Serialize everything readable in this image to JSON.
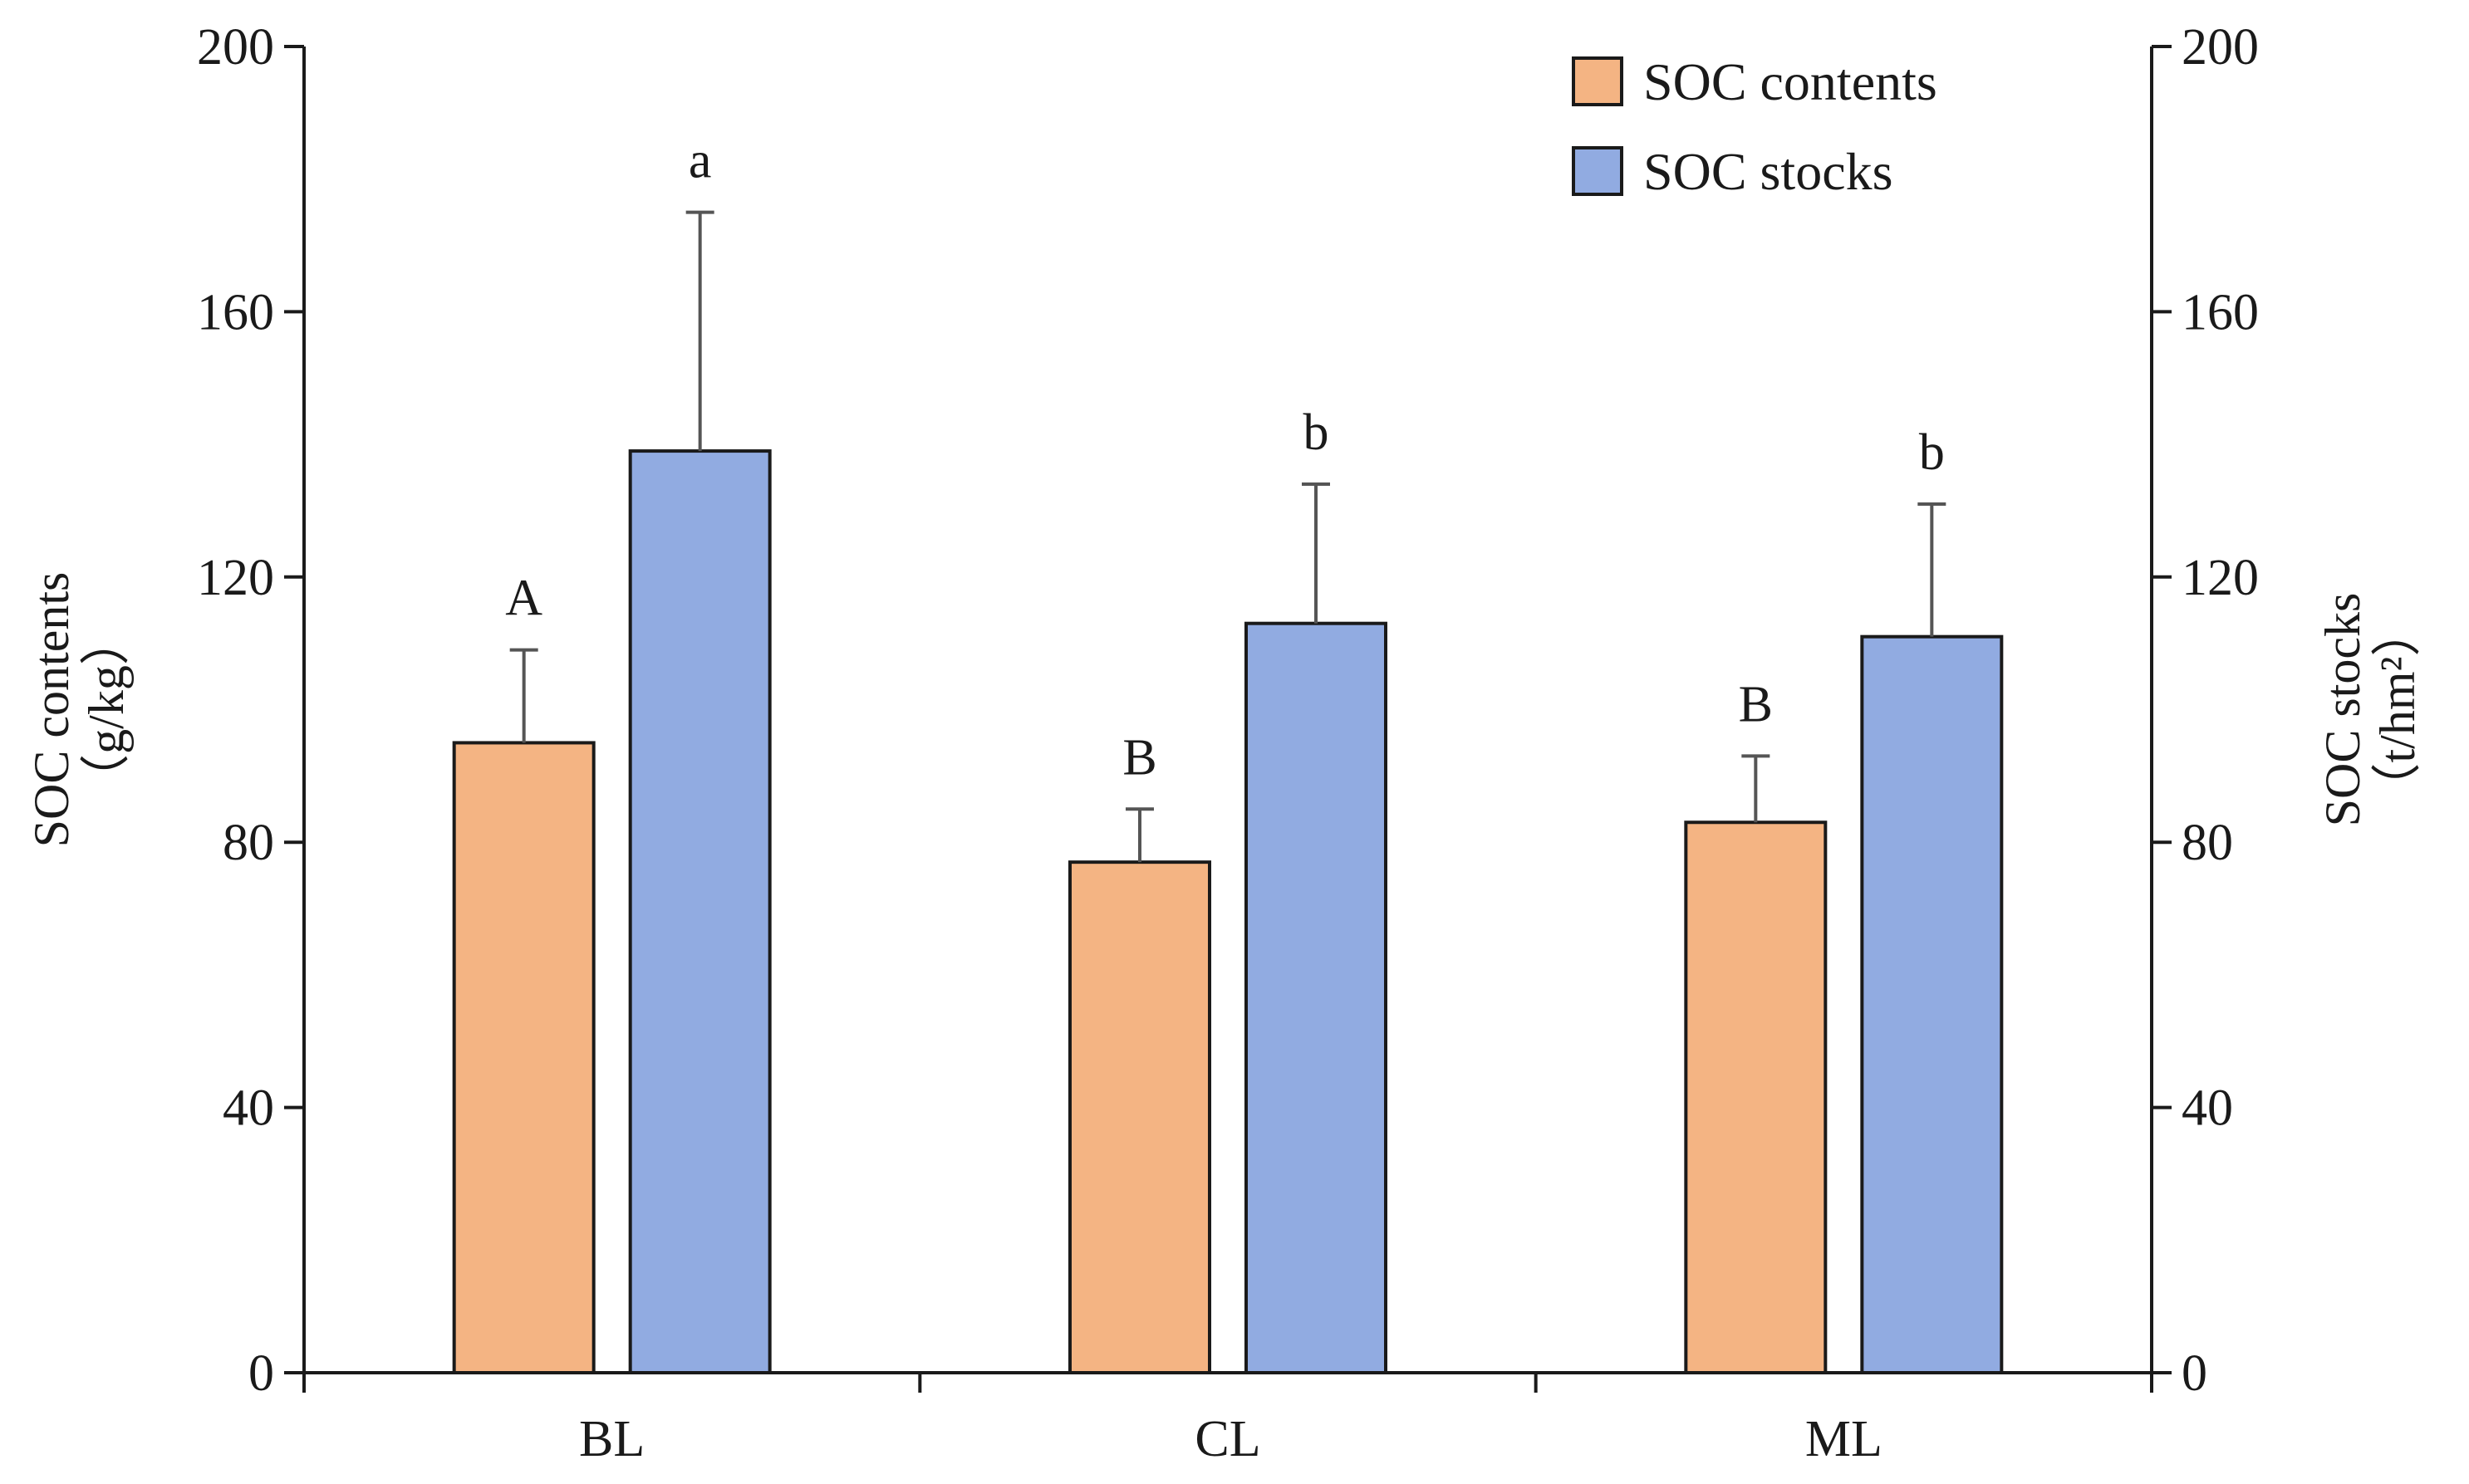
{
  "chart_data": {
    "type": "bar",
    "categories": [
      "BL",
      "CL",
      "ML"
    ],
    "series": [
      {
        "name": "SOC contents",
        "axis": "left",
        "color": "#f4b483",
        "values": [
          95,
          77,
          83
        ],
        "errors": [
          14,
          8,
          10
        ],
        "letters": [
          "A",
          "B",
          "B"
        ]
      },
      {
        "name": "SOC stocks",
        "axis": "right",
        "color": "#91abe1",
        "values": [
          139,
          113,
          111
        ],
        "errors": [
          36,
          21,
          20
        ],
        "letters": [
          "a",
          "b",
          "b"
        ]
      }
    ],
    "y_left": {
      "label": "SOC contents",
      "unit": "（g/kg）",
      "ylim": [
        0,
        200
      ],
      "ticks": [
        "0",
        "40",
        "80",
        "120",
        "160",
        "200"
      ]
    },
    "y_right": {
      "label": "SOC stocks",
      "unit": "（t/hm²）",
      "ylim": [
        0,
        200
      ],
      "ticks": [
        "0",
        "40",
        "80",
        "120",
        "160",
        "200"
      ]
    },
    "legend": {
      "position": "top-right",
      "entries": [
        "SOC contents",
        "SOC stocks"
      ]
    },
    "grid": false
  }
}
